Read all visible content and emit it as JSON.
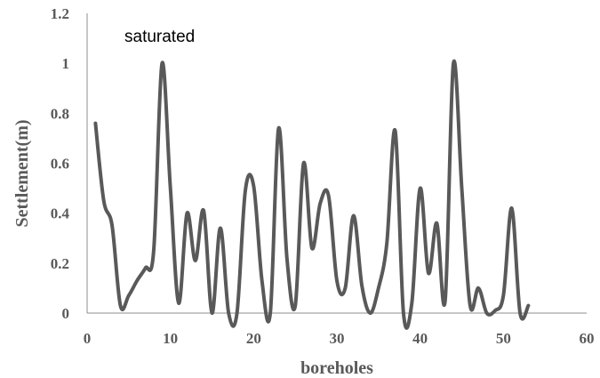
{
  "chart_data": {
    "type": "line",
    "title": "",
    "annotation": "saturated",
    "xlabel": "boreholes",
    "ylabel": "Settlement(m)",
    "xlim": [
      0,
      60
    ],
    "ylim": [
      0,
      1.2
    ],
    "x_ticks": [
      "0",
      "10",
      "20",
      "30",
      "40",
      "50",
      "60"
    ],
    "y_ticks": [
      "0",
      "0.2",
      "0.4",
      "0.6",
      "0.8",
      "1",
      "1.2"
    ],
    "grid": false,
    "legend": "none",
    "line_color": "#595959",
    "series": [
      {
        "x": [
          1,
          2,
          3,
          4,
          5,
          6,
          7,
          8,
          9,
          10,
          11,
          12,
          13,
          14,
          15,
          16,
          17,
          18,
          19,
          20,
          21,
          22,
          23,
          24,
          25,
          26,
          27,
          28,
          29,
          30,
          31,
          32,
          33,
          34,
          35,
          36,
          37,
          38,
          39,
          40,
          41,
          42,
          43,
          44,
          45,
          46,
          47,
          48,
          49,
          50,
          51,
          52,
          53
        ],
        "values": [
          0.76,
          0.45,
          0.35,
          0.03,
          0.07,
          0.13,
          0.18,
          0.25,
          1.0,
          0.5,
          0.04,
          0.4,
          0.21,
          0.41,
          0.0,
          0.34,
          0.0,
          0.0,
          0.49,
          0.51,
          0.13,
          0.0,
          0.74,
          0.22,
          0.03,
          0.6,
          0.26,
          0.44,
          0.47,
          0.13,
          0.1,
          0.39,
          0.11,
          0.0,
          0.1,
          0.28,
          0.73,
          0.0,
          0.04,
          0.5,
          0.16,
          0.36,
          0.05,
          1.0,
          0.5,
          0.03,
          0.1,
          0.0,
          0.01,
          0.07,
          0.42,
          0.0,
          0.03
        ]
      }
    ]
  }
}
